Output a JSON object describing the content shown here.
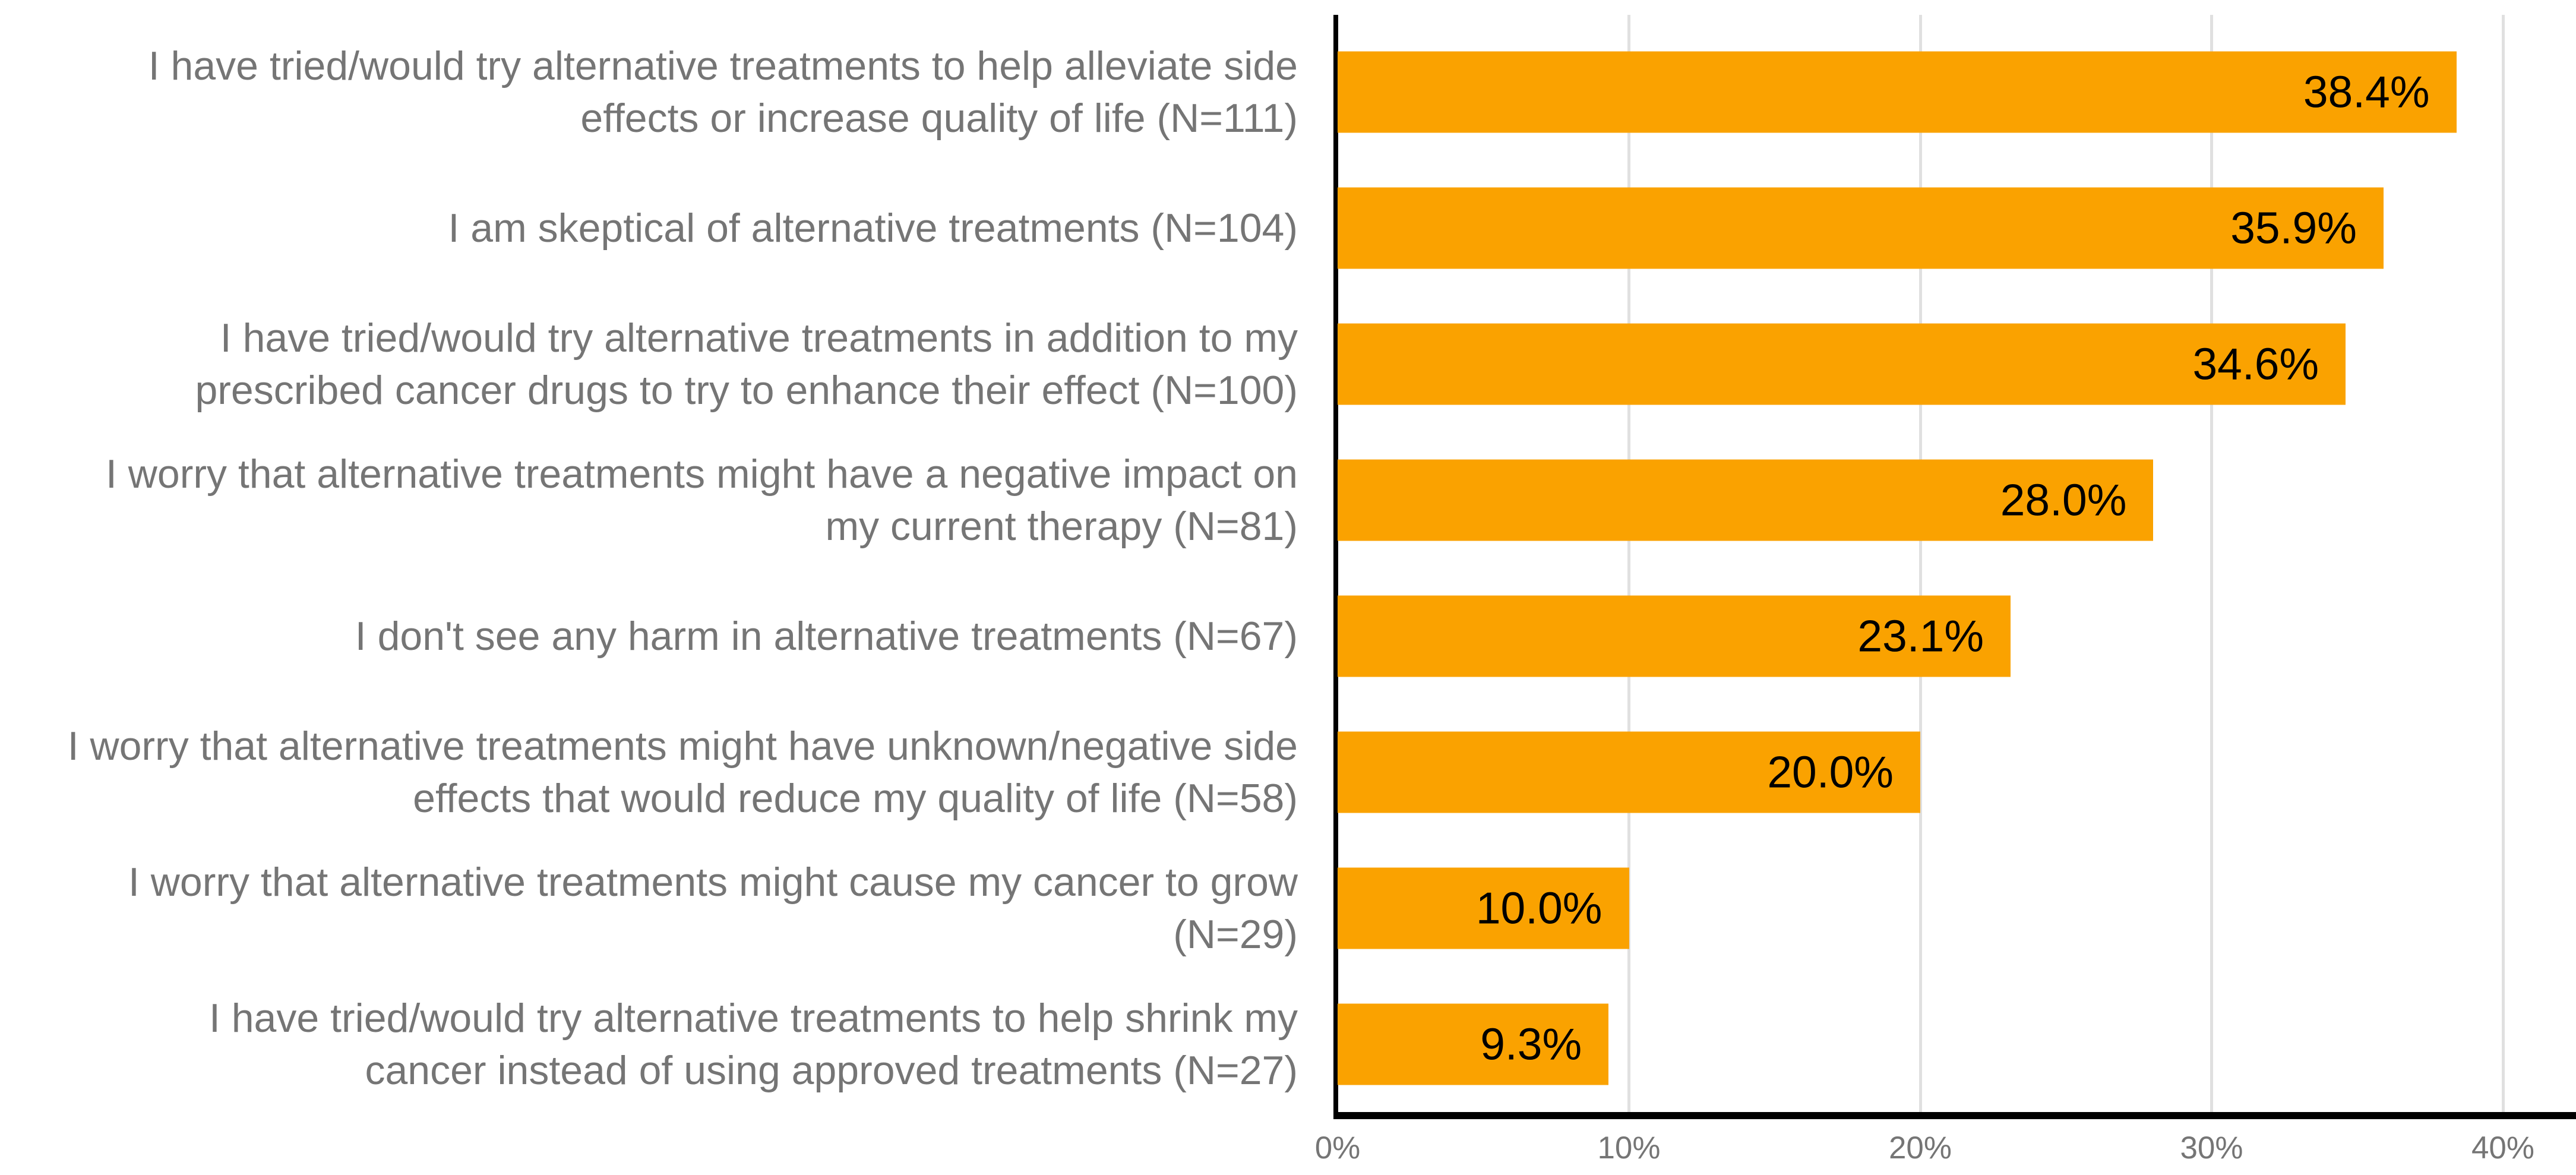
{
  "chart_data": {
    "type": "bar",
    "orientation": "horizontal",
    "title": "",
    "xlabel": "",
    "ylabel": "",
    "xlim": [
      0,
      42.5
    ],
    "grid": "vertical-gridlines-on",
    "legend": "none",
    "bar_color": "#faa200",
    "category_label_color": "#757575",
    "value_label_color": "#000000",
    "gridline_color": "#e0e0e0",
    "axis_color": "#000000",
    "x_ticks": [
      {
        "label": "0%",
        "value": 0
      },
      {
        "label": "10%",
        "value": 10
      },
      {
        "label": "20%",
        "value": 20
      },
      {
        "label": "30%",
        "value": 30
      },
      {
        "label": "40%",
        "value": 40
      }
    ],
    "rows": [
      {
        "label_lines": [
          "I have tried/would try alternative treatments to help alleviate side",
          "effects or increase quality of life (N=111)"
        ],
        "n": 111,
        "value": 38.4,
        "value_label": "38.4%"
      },
      {
        "label_lines": [
          "I am skeptical of alternative treatments (N=104)"
        ],
        "n": 104,
        "value": 35.9,
        "value_label": "35.9%"
      },
      {
        "label_lines": [
          "I have tried/would try alternative treatments in addition to my",
          "prescribed cancer drugs to try to enhance their effect (N=100)"
        ],
        "n": 100,
        "value": 34.6,
        "value_label": "34.6%"
      },
      {
        "label_lines": [
          "I worry that alternative treatments might have a negative impact on",
          "my current therapy (N=81)"
        ],
        "n": 81,
        "value": 28.0,
        "value_label": "28.0%"
      },
      {
        "label_lines": [
          "I don't see any harm in alternative treatments (N=67)"
        ],
        "n": 67,
        "value": 23.1,
        "value_label": "23.1%"
      },
      {
        "label_lines": [
          "I worry that alternative treatments might have unknown/negative side",
          "effects that would reduce my quality of life (N=58)"
        ],
        "n": 58,
        "value": 20.0,
        "value_label": "20.0%"
      },
      {
        "label_lines": [
          "I worry that alternative treatments might cause my cancer to grow",
          "(N=29)"
        ],
        "n": 29,
        "value": 10.0,
        "value_label": "10.0%"
      },
      {
        "label_lines": [
          "I have tried/would try alternative treatments to help shrink my",
          "cancer instead of using approved treatments (N=27)"
        ],
        "n": 27,
        "value": 9.3,
        "value_label": "9.3%"
      }
    ]
  }
}
